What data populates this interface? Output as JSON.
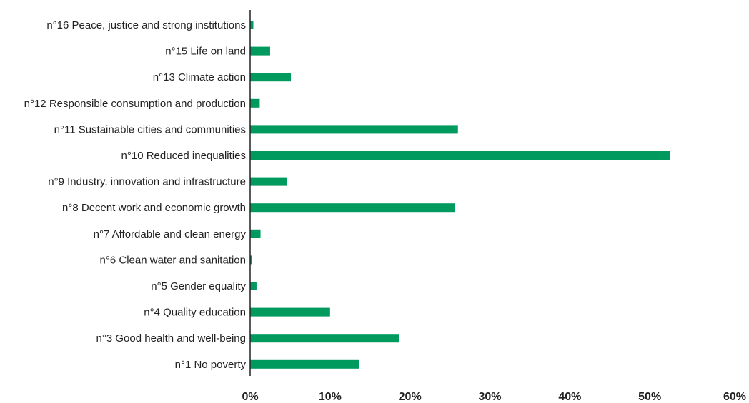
{
  "chart_data": {
    "type": "bar",
    "orientation": "horizontal",
    "title": "",
    "xlabel": "",
    "ylabel": "",
    "xlim": [
      0,
      60
    ],
    "x_ticks": [
      "0%",
      "10%",
      "20%",
      "30%",
      "40%",
      "50%",
      "60%"
    ],
    "grid": false,
    "bar_color": "#009a5e",
    "categories": [
      "n°16 Peace, justice and strong institutions",
      "n°15 Life on land",
      "n°13 Climate action",
      "n°12 Responsible consumption and production",
      "n°11 Sustainable cities and communities",
      "n°10 Reduced inequalities",
      "n°9 Industry, innovation and infrastructure",
      "n°8 Decent work and economic growth",
      "n°7 Affordable and clean energy",
      "n°6 Clean water and sanitation",
      "n°5 Gender equality",
      "n°4 Quality education",
      "n°3 Good health and well-being",
      "n°1 No poverty"
    ],
    "values": [
      0.4,
      2.5,
      5.1,
      1.2,
      26.0,
      52.5,
      4.6,
      25.6,
      1.3,
      0.2,
      0.8,
      10.0,
      18.6,
      13.6
    ]
  }
}
